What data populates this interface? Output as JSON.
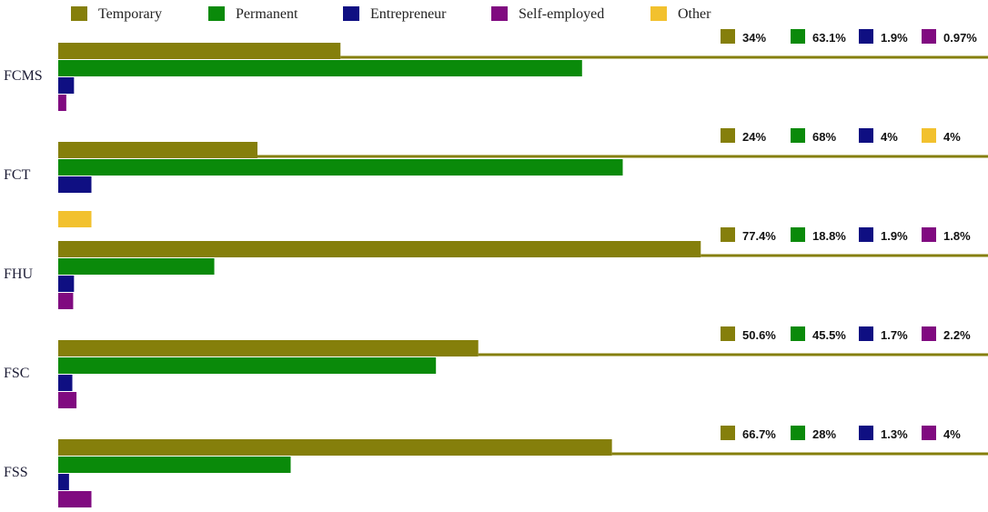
{
  "chart_data": {
    "type": "bar",
    "orientation": "horizontal",
    "categories": [
      "FCMS",
      "FCT",
      "FHU",
      "FSC",
      "FSS"
    ],
    "xlim": [
      0,
      112
    ],
    "grid": false,
    "legend_position": "top",
    "series": [
      {
        "name": "Temporary",
        "color": "#857f0b",
        "values": [
          34,
          24,
          77.4,
          50.6,
          66.7
        ]
      },
      {
        "name": "Permanent",
        "color": "#0a8a0a",
        "values": [
          63.1,
          68,
          18.8,
          45.5,
          28
        ]
      },
      {
        "name": "Entrepreneur",
        "color": "#0f0f82",
        "values": [
          1.9,
          4,
          1.9,
          1.7,
          1.3
        ]
      },
      {
        "name": "Self-employed",
        "color": "#800a80",
        "values": [
          0.97,
          null,
          1.8,
          2.2,
          4
        ]
      },
      {
        "name": "Other",
        "color": "#f2c12e",
        "values": [
          null,
          4,
          null,
          null,
          null
        ]
      }
    ],
    "data_labels": [
      [
        "34%",
        "63.1%",
        "1.9%",
        "0.97%",
        null
      ],
      [
        "24%",
        "68%",
        "4%",
        null,
        "4%"
      ],
      [
        "77.4%",
        "18.8%",
        "1.9%",
        "1.8%",
        null
      ],
      [
        "50.6%",
        "45.5%",
        "1.7%",
        "2.2%",
        null
      ],
      [
        "66.7%",
        "28%",
        "1.3%",
        "4%",
        null
      ]
    ]
  }
}
